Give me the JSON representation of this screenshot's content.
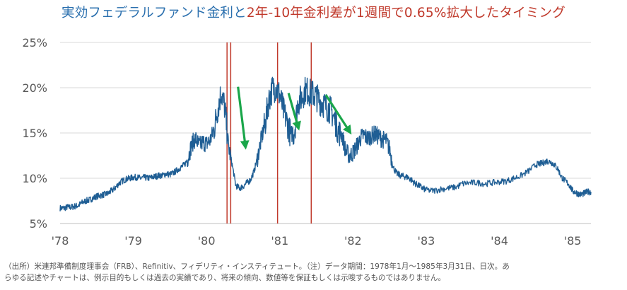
{
  "title": {
    "part1": "実効フェデラルファンド金利と",
    "part2": "2年-10年金利差が1週間で0.65%拡大したタイミング"
  },
  "colors": {
    "title_part1": "#2a6fae",
    "title_part2": "#c0392b",
    "line": "#1f5e94",
    "markers": "#c0392b",
    "arrows": "#1aa64a",
    "axis_text": "#595959",
    "grid": "#d9d9d9"
  },
  "note": {
    "line1": "（出所）米連邦準備制度理事会（FRB）、Refinitiv、フィデリティ・インスティテュート。（注）データ期間：1978年1月～1985年3月31日、日次。あ",
    "line2": "らゆる記述やチャートは、例示目的もしくは過去の実績であり、将来の傾向、数値等を保証もしくは示唆するものではありません。"
  },
  "chart_data": {
    "type": "line",
    "ylim": [
      5,
      25
    ],
    "yticks": [
      5,
      10,
      15,
      20,
      25
    ],
    "ytick_labels": [
      "5%",
      "10%",
      "15%",
      "20%",
      "25%"
    ],
    "xlim": [
      1978.0,
      1985.25
    ],
    "xticks": [
      1978,
      1979,
      1980,
      1981,
      1982,
      1983,
      1984,
      1985
    ],
    "xtick_labels": [
      "'78",
      "'79",
      "'80",
      "'81",
      "'82",
      "'83",
      "'84",
      "'85"
    ],
    "grid": "horizontal",
    "series": [
      {
        "x": [
          1978.0,
          1978.05,
          1978.1,
          1978.15,
          1978.2,
          1978.25,
          1978.3,
          1978.35,
          1978.4,
          1978.45,
          1978.5,
          1978.55,
          1978.6,
          1978.65,
          1978.7,
          1978.75,
          1978.8,
          1978.85,
          1978.9,
          1978.95,
          1979.0,
          1979.05,
          1979.1,
          1979.15,
          1979.2,
          1979.25,
          1979.3,
          1979.35,
          1979.4,
          1979.45,
          1979.5,
          1979.55,
          1979.6,
          1979.65,
          1979.7,
          1979.75,
          1979.8,
          1979.85,
          1979.9,
          1979.95,
          1980.0,
          1980.05,
          1980.1,
          1980.15,
          1980.2,
          1980.25,
          1980.3,
          1980.35,
          1980.4,
          1980.45,
          1980.5,
          1980.55,
          1980.6,
          1980.65,
          1980.7,
          1980.75,
          1980.8,
          1980.85,
          1980.9,
          1980.95,
          1981.0,
          1981.05,
          1981.1,
          1981.15,
          1981.2,
          1981.25,
          1981.3,
          1981.35,
          1981.4,
          1981.45,
          1981.5,
          1981.55,
          1981.6,
          1981.65,
          1981.7,
          1981.75,
          1981.8,
          1981.85,
          1981.9,
          1981.95,
          1982.0,
          1982.05,
          1982.1,
          1982.15,
          1982.2,
          1982.25,
          1982.3,
          1982.35,
          1982.4,
          1982.45,
          1982.5,
          1982.55,
          1982.6,
          1982.65,
          1982.7,
          1982.75,
          1982.8,
          1982.85,
          1982.9,
          1982.95,
          1983.0,
          1983.1,
          1983.2,
          1983.3,
          1983.4,
          1983.5,
          1983.6,
          1983.7,
          1983.8,
          1983.9,
          1984.0,
          1984.1,
          1984.2,
          1984.3,
          1984.4,
          1984.5,
          1984.55,
          1984.6,
          1984.65,
          1984.7,
          1984.75,
          1984.8,
          1984.85,
          1984.9,
          1984.95,
          1985.0,
          1985.05,
          1985.1,
          1985.15,
          1985.2,
          1985.25
        ],
        "values": [
          6.7,
          6.7,
          6.8,
          6.8,
          6.9,
          7.0,
          7.3,
          7.5,
          7.6,
          7.8,
          8.0,
          8.1,
          8.2,
          8.3,
          8.6,
          8.9,
          9.4,
          9.7,
          9.9,
          10.0,
          10.1,
          10.1,
          10.0,
          10.1,
          10.0,
          10.1,
          10.2,
          10.3,
          10.3,
          10.5,
          10.4,
          10.6,
          10.9,
          11.2,
          11.5,
          12.3,
          13.8,
          14.4,
          13.6,
          14.0,
          13.8,
          14.2,
          15.3,
          17.5,
          19.5,
          17.8,
          13.5,
          11.5,
          9.2,
          8.9,
          9.1,
          9.5,
          9.8,
          10.8,
          12.4,
          14.4,
          16.0,
          18.6,
          19.9,
          20.0,
          19.2,
          17.5,
          16.2,
          14.8,
          15.2,
          18.4,
          18.9,
          19.8,
          19.5,
          19.3,
          19.0,
          18.5,
          18.2,
          17.8,
          17.5,
          16.5,
          15.2,
          14.8,
          13.0,
          12.5,
          12.8,
          13.5,
          14.4,
          14.8,
          14.4,
          14.7,
          14.9,
          14.6,
          14.3,
          14.2,
          13.2,
          11.2,
          10.5,
          10.3,
          10.2,
          10.1,
          9.8,
          9.4,
          9.2,
          8.9,
          8.7,
          8.6,
          8.8,
          8.9,
          9.0,
          9.4,
          9.5,
          9.5,
          9.4,
          9.5,
          9.6,
          9.7,
          10.0,
          10.3,
          10.8,
          11.5,
          11.6,
          11.7,
          11.9,
          11.8,
          11.5,
          11.0,
          10.1,
          9.7,
          9.3,
          8.6,
          8.4,
          8.2,
          8.3,
          8.5,
          8.5
        ]
      }
    ],
    "vertical_markers": [
      1980.28,
      1980.33,
      1980.97,
      1981.43
    ],
    "arrows": [
      {
        "from": [
          1980.43,
          20.1
        ],
        "to": [
          1980.53,
          13.6
        ]
      },
      {
        "from": [
          1981.12,
          19.4
        ],
        "to": [
          1981.25,
          15.7
        ]
      },
      {
        "from": [
          1981.63,
          19.2
        ],
        "to": [
          1981.95,
          15.2
        ]
      }
    ]
  }
}
